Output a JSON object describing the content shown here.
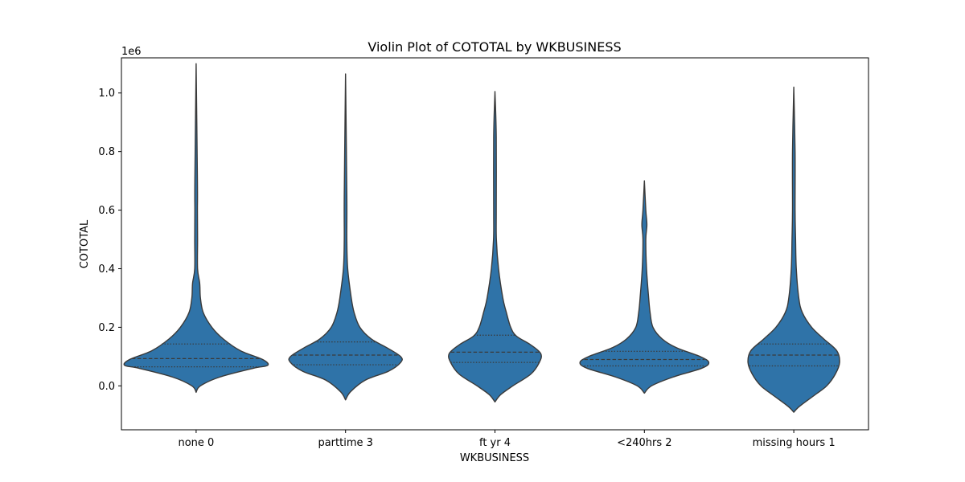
{
  "chart_data": {
    "type": "violin",
    "title": "Violin Plot of COTOTAL by WKBUSINESS",
    "xlabel": "WKBUSINESS",
    "ylabel": "COTOTAL",
    "y_offset_label": "1e6",
    "y_tick_values": [
      0.0,
      0.2,
      0.4,
      0.6,
      0.8,
      1.0
    ],
    "y_tick_labels": [
      "0.0",
      "0.2",
      "0.4",
      "0.6",
      "0.8",
      "1.0"
    ],
    "ylim": [
      -0.15,
      1.12
    ],
    "inner": "quartile",
    "color": "#2f73a8",
    "edge_color": "#3a3a3a",
    "categories": [
      "none 0",
      "parttime 3",
      "ft yr 4",
      "<240hrs 2",
      "missing hours 1"
    ],
    "violins": [
      {
        "category": "none 0",
        "quartiles": [
          0.065,
          0.093,
          0.143
        ],
        "profile": [
          [
            -0.022,
            0.0
          ],
          [
            0.0,
            0.06
          ],
          [
            0.03,
            0.33
          ],
          [
            0.06,
            0.8
          ],
          [
            0.07,
            1.0
          ],
          [
            0.09,
            0.93
          ],
          [
            0.12,
            0.62
          ],
          [
            0.16,
            0.38
          ],
          [
            0.2,
            0.22
          ],
          [
            0.25,
            0.1
          ],
          [
            0.3,
            0.06
          ],
          [
            0.35,
            0.05
          ],
          [
            0.4,
            0.02
          ],
          [
            0.5,
            0.02
          ],
          [
            0.6,
            0.015
          ],
          [
            0.7,
            0.008
          ],
          [
            1.1,
            0.0
          ]
        ]
      },
      {
        "category": "parttime 3",
        "quartiles": [
          0.072,
          0.105,
          0.15
        ],
        "profile": [
          [
            -0.048,
            0.0
          ],
          [
            -0.02,
            0.07
          ],
          [
            0.02,
            0.28
          ],
          [
            0.05,
            0.6
          ],
          [
            0.08,
            0.77
          ],
          [
            0.1,
            0.77
          ],
          [
            0.13,
            0.58
          ],
          [
            0.16,
            0.36
          ],
          [
            0.2,
            0.2
          ],
          [
            0.25,
            0.12
          ],
          [
            0.3,
            0.08
          ],
          [
            0.4,
            0.03
          ],
          [
            0.5,
            0.015
          ],
          [
            0.65,
            0.01
          ],
          [
            1.065,
            0.0
          ]
        ]
      },
      {
        "category": "ft yr 4",
        "quartiles": [
          0.08,
          0.115,
          0.173
        ],
        "profile": [
          [
            -0.055,
            0.0
          ],
          [
            -0.03,
            0.08
          ],
          [
            0.0,
            0.25
          ],
          [
            0.04,
            0.5
          ],
          [
            0.08,
            0.62
          ],
          [
            0.11,
            0.64
          ],
          [
            0.14,
            0.5
          ],
          [
            0.17,
            0.3
          ],
          [
            0.2,
            0.22
          ],
          [
            0.25,
            0.16
          ],
          [
            0.3,
            0.11
          ],
          [
            0.4,
            0.05
          ],
          [
            0.5,
            0.02
          ],
          [
            0.6,
            0.015
          ],
          [
            0.85,
            0.01
          ],
          [
            1.005,
            0.0
          ]
        ]
      },
      {
        "category": "<240hrs 2",
        "quartiles": [
          0.068,
          0.09,
          0.118
        ],
        "profile": [
          [
            -0.025,
            0.0
          ],
          [
            0.0,
            0.1
          ],
          [
            0.03,
            0.4
          ],
          [
            0.06,
            0.8
          ],
          [
            0.08,
            0.9
          ],
          [
            0.1,
            0.78
          ],
          [
            0.13,
            0.45
          ],
          [
            0.16,
            0.25
          ],
          [
            0.2,
            0.12
          ],
          [
            0.25,
            0.08
          ],
          [
            0.3,
            0.06
          ],
          [
            0.4,
            0.03
          ],
          [
            0.5,
            0.02
          ],
          [
            0.55,
            0.035
          ],
          [
            0.6,
            0.02
          ],
          [
            0.7,
            0.0
          ]
        ]
      },
      {
        "category": "missing hours 1",
        "quartiles": [
          0.068,
          0.105,
          0.143
        ],
        "profile": [
          [
            -0.09,
            0.0
          ],
          [
            -0.07,
            0.08
          ],
          [
            -0.03,
            0.3
          ],
          [
            0.0,
            0.46
          ],
          [
            0.04,
            0.58
          ],
          [
            0.08,
            0.64
          ],
          [
            0.12,
            0.6
          ],
          [
            0.16,
            0.42
          ],
          [
            0.2,
            0.25
          ],
          [
            0.25,
            0.12
          ],
          [
            0.3,
            0.07
          ],
          [
            0.4,
            0.035
          ],
          [
            0.5,
            0.025
          ],
          [
            0.6,
            0.015
          ],
          [
            0.8,
            0.01
          ],
          [
            1.02,
            0.0
          ]
        ]
      }
    ]
  }
}
